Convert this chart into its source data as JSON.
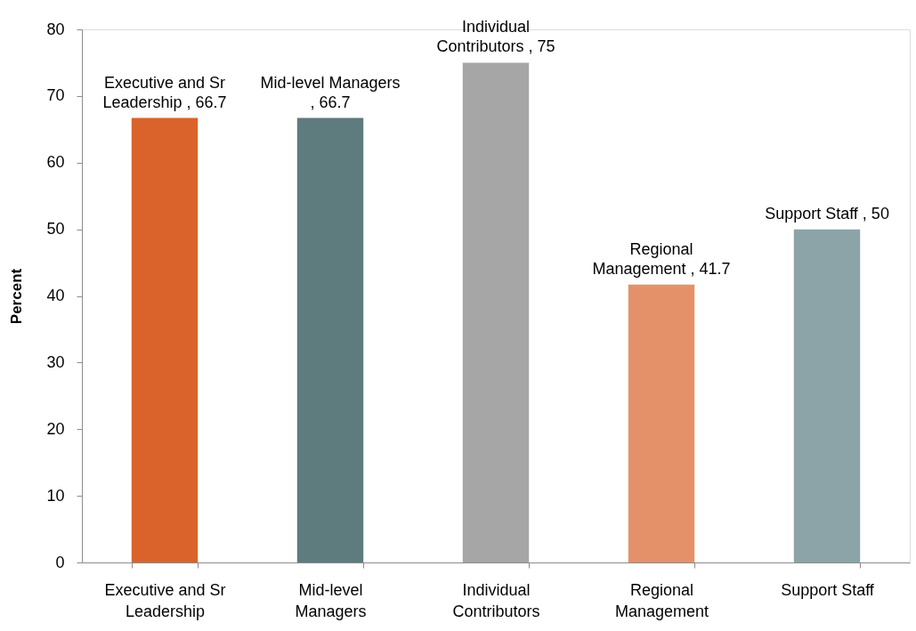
{
  "chart_data": {
    "type": "bar",
    "ylabel": "Percent",
    "categories": [
      "Executive and Sr Leadership",
      "Mid-level Managers",
      "Individual Contributors",
      "Regional Management",
      "Support Staff"
    ],
    "values": [
      66.7,
      66.7,
      75,
      41.7,
      50
    ],
    "colors": [
      "#d9632b",
      "#5e7b7e",
      "#a6a6a6",
      "#e49169",
      "#8ca4a7"
    ],
    "value_labels": [
      "Executive and Sr Leadership , 66.7",
      "Mid-level Managers , 66.7",
      "Individual Contributors , 75",
      "Regional Management , 41.7",
      "Support Staff , 50"
    ],
    "ylim": [
      0,
      80
    ],
    "yticks": [
      0,
      10,
      20,
      30,
      40,
      50,
      60,
      70,
      80
    ]
  }
}
